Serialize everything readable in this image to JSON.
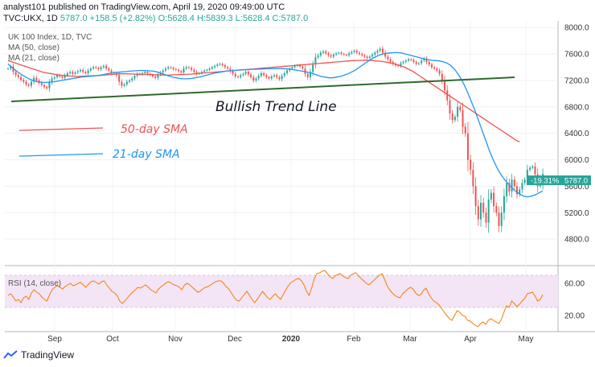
{
  "header": {
    "line1": "analyst101 published on TradingView.com, April 19, 2020 09:49:00 UTC",
    "ticker": "TVC:UKX, 1D",
    "close": "5787.0",
    "change": "+158.5 (+2.82%)",
    "ohlc": "O:5628.4 H:5839.3 L:5628.4 C:5787.0"
  },
  "legend": {
    "symbol": "UK 100 Index, 1D, TVC",
    "ma50": "MA (50, close)",
    "ma21": "MA (21, close)"
  },
  "annotations": {
    "trend": "Bullish Trend Line",
    "sma50": "50-day SMA",
    "sma21": "21-day SMA"
  },
  "price_tag": {
    "pct": "-19.31%",
    "price": "5787.0"
  },
  "rsi_label": "RSI (14, close)",
  "footer": {
    "brand": "TradingView"
  },
  "colors": {
    "up": "#26a69a",
    "down": "#ef5350",
    "sma50": "#f0524f",
    "sma21": "#2196f3",
    "trend": "#2e6b2e",
    "rsi": "#f57c00",
    "rsi_band": "#f3e5f5"
  },
  "chart_data": [
    {
      "type": "candlestick",
      "yticks": [
        "8000.0",
        "7600.0",
        "7200.0",
        "6800.0",
        "6400.0",
        "6000.0",
        "5600.0",
        "5200.0",
        "4800.0"
      ],
      "xticks": [
        "Sep",
        "Oct",
        "Nov",
        "Dec",
        "2020",
        "Feb",
        "Mar",
        "Apr",
        "May"
      ],
      "ylim": [
        4400,
        8100
      ],
      "close": [
        7380,
        7410,
        7330,
        7280,
        7250,
        7210,
        7180,
        7140,
        7120,
        7180,
        7240,
        7200,
        7160,
        7130,
        7100,
        7080,
        7170,
        7230,
        7250,
        7280,
        7260,
        7240,
        7280,
        7310,
        7330,
        7300,
        7320,
        7340,
        7360,
        7330,
        7310,
        7350,
        7380,
        7400,
        7390,
        7370,
        7400,
        7420,
        7380,
        7350,
        7320,
        7310,
        7280,
        7180,
        7120,
        7140,
        7180,
        7200,
        7230,
        7270,
        7300,
        7290,
        7310,
        7330,
        7300,
        7280,
        7260,
        7240,
        7290,
        7320,
        7350,
        7380,
        7400,
        7390,
        7370,
        7360,
        7340,
        7320,
        7380,
        7400,
        7390,
        7360,
        7330,
        7300,
        7310,
        7330,
        7350,
        7360,
        7380,
        7400,
        7420,
        7440,
        7450,
        7430,
        7400,
        7380,
        7340,
        7300,
        7260,
        7250,
        7280,
        7300,
        7330,
        7290,
        7250,
        7200,
        7230,
        7270,
        7310,
        7280,
        7250,
        7230,
        7260,
        7280,
        7250,
        7220,
        7270,
        7310,
        7350,
        7380,
        7400,
        7420,
        7430,
        7410,
        7380,
        7300,
        7250,
        7330,
        7440,
        7550,
        7580,
        7620,
        7640,
        7610,
        7580,
        7560,
        7590,
        7610,
        7620,
        7600,
        7590,
        7580,
        7610,
        7630,
        7650,
        7620,
        7600,
        7580,
        7560,
        7540,
        7560,
        7590,
        7620,
        7650,
        7680,
        7620,
        7560,
        7520,
        7480,
        7450,
        7430,
        7420,
        7460,
        7480,
        7500,
        7520,
        7510,
        7480,
        7450,
        7460,
        7500,
        7530,
        7480,
        7440,
        7400,
        7380,
        7350,
        7300,
        7200,
        7050,
        6900,
        6700,
        6600,
        6650,
        6800,
        6750,
        6500,
        6400,
        6000,
        5850,
        5600,
        5300,
        5100,
        5350,
        5200,
        5050,
        5400,
        5500,
        5300,
        5200,
        5000,
        5200,
        5450,
        5650,
        5520,
        5700,
        5600,
        5480,
        5550,
        5650,
        5700,
        5850,
        5880,
        5900,
        5780,
        5600,
        5628,
        5787
      ],
      "sma50": [
        7500,
        7480,
        7460,
        7440,
        7420,
        7400,
        7380,
        7360,
        7340,
        7320,
        7310,
        7300,
        7290,
        7280,
        7275,
        7270,
        7265,
        7260,
        7262,
        7265,
        7268,
        7270,
        7272,
        7275,
        7280,
        7285,
        7290,
        7295,
        7300,
        7302,
        7300,
        7298,
        7296,
        7294,
        7292,
        7290,
        7288,
        7286,
        7284,
        7282,
        7280,
        7282,
        7285,
        7288,
        7290,
        7292,
        7295,
        7300,
        7305,
        7310,
        7315,
        7320,
        7325,
        7330,
        7335,
        7340,
        7345,
        7350,
        7355,
        7360,
        7365,
        7370,
        7375,
        7380,
        7385,
        7390,
        7395,
        7400,
        7405,
        7410,
        7415,
        7420,
        7425,
        7430,
        7435,
        7440,
        7445,
        7450,
        7455,
        7460,
        7465,
        7470,
        7475,
        7480,
        7485,
        7490,
        7495,
        7500,
        7502,
        7504,
        7506,
        7504,
        7500,
        7495,
        7490,
        7480,
        7470,
        7460,
        7440,
        7420,
        7400,
        7370,
        7340,
        7300,
        7260,
        7220,
        7180,
        7140,
        7100,
        7060,
        7020,
        6980,
        6940,
        6900,
        6860,
        6820,
        6780,
        6740,
        6700,
        6660,
        6620,
        6580,
        6540,
        6500,
        6460,
        6420,
        6380,
        6340,
        6300,
        6270
      ],
      "sma21": [
        7450,
        7400,
        7350,
        7310,
        7270,
        7240,
        7210,
        7190,
        7180,
        7170,
        7170,
        7175,
        7180,
        7190,
        7200,
        7210,
        7220,
        7230,
        7240,
        7250,
        7255,
        7260,
        7265,
        7270,
        7280,
        7290,
        7300,
        7310,
        7320,
        7325,
        7330,
        7335,
        7340,
        7345,
        7350,
        7352,
        7350,
        7345,
        7340,
        7330,
        7310,
        7290,
        7270,
        7250,
        7240,
        7230,
        7225,
        7225,
        7230,
        7240,
        7250,
        7265,
        7280,
        7295,
        7310,
        7320,
        7330,
        7340,
        7345,
        7350,
        7355,
        7360,
        7362,
        7365,
        7368,
        7370,
        7372,
        7374,
        7376,
        7378,
        7380,
        7380,
        7378,
        7375,
        7370,
        7360,
        7350,
        7340,
        7330,
        7320,
        7300,
        7280,
        7260,
        7250,
        7240,
        7240,
        7250,
        7260,
        7280,
        7300,
        7330,
        7360,
        7400,
        7440,
        7480,
        7520,
        7550,
        7580,
        7600,
        7610,
        7615,
        7620,
        7620,
        7615,
        7600,
        7585,
        7570,
        7555,
        7540,
        7525,
        7515,
        7505,
        7500,
        7495,
        7480,
        7460,
        7420,
        7360,
        7280,
        7180,
        7060,
        6920,
        6780,
        6620,
        6460,
        6300,
        6140,
        6000,
        5880,
        5780,
        5700,
        5630,
        5570,
        5520,
        5480,
        5450,
        5440,
        5450,
        5470,
        5500,
        5530
      ]
    },
    {
      "type": "line",
      "name": "RSI (14, close)",
      "yticks": [
        "60.00",
        "20.00"
      ],
      "ylim": [
        0,
        80
      ],
      "band": [
        30,
        70
      ],
      "values": [
        45,
        47,
        43,
        38,
        40,
        36,
        42,
        44,
        40,
        48,
        52,
        49,
        47,
        43,
        40,
        38,
        46,
        52,
        55,
        57,
        55,
        53,
        56,
        58,
        60,
        57,
        58,
        60,
        61,
        58,
        55,
        59,
        62,
        63,
        61,
        59,
        62,
        63,
        58,
        54,
        50,
        48,
        45,
        38,
        35,
        38,
        42,
        46,
        49,
        52,
        55,
        54,
        56,
        58,
        55,
        52,
        50,
        48,
        53,
        56,
        58,
        61,
        62,
        60,
        58,
        57,
        55,
        52,
        58,
        60,
        58,
        55,
        52,
        49,
        50,
        53,
        55,
        56,
        58,
        60,
        62,
        63,
        63,
        60,
        56,
        53,
        48,
        43,
        39,
        38,
        42,
        46,
        50,
        45,
        40,
        36,
        40,
        45,
        50,
        46,
        42,
        40,
        44,
        47,
        43,
        40,
        46,
        52,
        57,
        61,
        63,
        65,
        66,
        63,
        58,
        50,
        45,
        55,
        66,
        72,
        73,
        75,
        76,
        72,
        68,
        66,
        69,
        71,
        72,
        69,
        67,
        66,
        70,
        72,
        73,
        69,
        66,
        63,
        60,
        58,
        61,
        64,
        67,
        70,
        72,
        65,
        57,
        52,
        48,
        45,
        43,
        42,
        47,
        50,
        53,
        55,
        53,
        48,
        45,
        46,
        51,
        54,
        47,
        42,
        38,
        36,
        33,
        29,
        24,
        20,
        16,
        14,
        20,
        26,
        24,
        20,
        19,
        14,
        13,
        10,
        8,
        6,
        10,
        12,
        9,
        14,
        16,
        14,
        12,
        10,
        15,
        24,
        32,
        30,
        38,
        35,
        31,
        34,
        38,
        41,
        47,
        48,
        49,
        44,
        38,
        40,
        46
      ]
    }
  ]
}
